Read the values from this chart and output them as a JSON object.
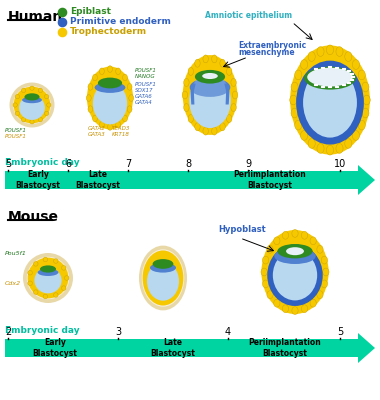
{
  "bg_color": "#ffffff",
  "teal_arrow": "#00D4A0",
  "teal_text": "#00BFA0",
  "green_epiblast": "#2E8B22",
  "blue_endoderm": "#3060C0",
  "blue_endoderm_light": "#5080D0",
  "yellow_tropho": "#F5C800",
  "yellow_tropho_dark": "#C8A000",
  "light_blue_cavity": "#B8D8F0",
  "zona": "#E8D8A8",
  "zona_inner": "#F8F0E0",
  "green_text": "#207820",
  "blue_text": "#3060C0",
  "yellow_text": "#C89000",
  "cyan_text": "#30B0C0",
  "gray_white": "#E8F0F8",
  "human_days": [
    5,
    6,
    7,
    8,
    9,
    10
  ],
  "mouse_days": [
    2,
    3,
    4,
    5
  ]
}
